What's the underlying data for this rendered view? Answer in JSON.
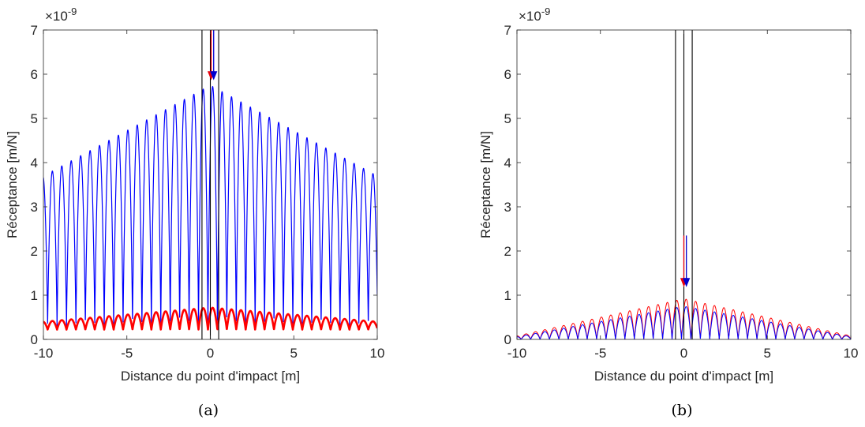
{
  "chart_data": [
    {
      "panel": "(a)",
      "type": "line",
      "xlabel": "Distance du point d'impact [m]",
      "ylabel": "Réceptance [m/N]",
      "exponent_label": "×10",
      "exponent_power": "-9",
      "caption": "(a)",
      "xlim": [
        -10,
        10
      ],
      "ylim": [
        0,
        7
      ],
      "xticks": [
        -10,
        -5,
        0,
        5,
        10
      ],
      "yticks": [
        0,
        1,
        2,
        3,
        4,
        5,
        6,
        7
      ],
      "grid": false,
      "legend": "none",
      "vertical_lines": [
        -0.5,
        0.0,
        0.5
      ],
      "arrows": [
        {
          "x": 0.05,
          "y_from": 7.0,
          "y_to": 5.9,
          "color": "#e8000b"
        },
        {
          "x": 0.2,
          "y_from": 7.0,
          "y_to": 5.9,
          "color": "#0000d0"
        }
      ],
      "series": [
        {
          "color": "#0000ff",
          "stroke_width": 1.2,
          "x_start": -10,
          "x_end": 10,
          "period": 0.565,
          "phase": 0.14,
          "peak_center": 5.75,
          "peak_edge": 3.7,
          "trough": 0.25,
          "sharp": true
        },
        {
          "color": "#ff0000",
          "stroke_width": 2.6,
          "x_start": -10,
          "x_end": 10,
          "period": 0.565,
          "phase": 0.14,
          "peak_center": 0.72,
          "peak_edge": 0.4,
          "trough": 0.22,
          "sharp": false
        }
      ]
    },
    {
      "panel": "(b)",
      "type": "line",
      "xlabel": "Distance du point d'impact [m]",
      "ylabel": "Réceptance [m/N]",
      "exponent_label": "×10",
      "exponent_power": "-9",
      "caption": "(b)",
      "xlim": [
        -10,
        10
      ],
      "ylim": [
        0,
        7
      ],
      "xticks": [
        -10,
        -5,
        0,
        5,
        10
      ],
      "yticks": [
        0,
        1,
        2,
        3,
        4,
        5,
        6,
        7
      ],
      "grid": false,
      "legend": "none",
      "vertical_lines": [
        -0.5,
        0.0,
        0.5
      ],
      "arrows": [
        {
          "x": 0.0,
          "y_from": 2.35,
          "y_to": 1.22,
          "color": "#e8000b"
        },
        {
          "x": 0.15,
          "y_from": 2.35,
          "y_to": 1.22,
          "color": "#0000d0"
        }
      ],
      "series": [
        {
          "color": "#ff0000",
          "stroke_width": 1.0,
          "x_start": -10,
          "x_end": 10,
          "period": 0.565,
          "phase": 0.14,
          "peak_center": 0.92,
          "peak_edge": 0.08,
          "trough": 0.0,
          "sharp": false
        },
        {
          "color": "#0000ff",
          "stroke_width": 1.0,
          "x_start": -10,
          "x_end": 10,
          "period": 0.565,
          "phase": 0.14,
          "peak_center": 0.75,
          "peak_edge": 0.06,
          "trough": 0.0,
          "sharp": false
        }
      ]
    }
  ]
}
